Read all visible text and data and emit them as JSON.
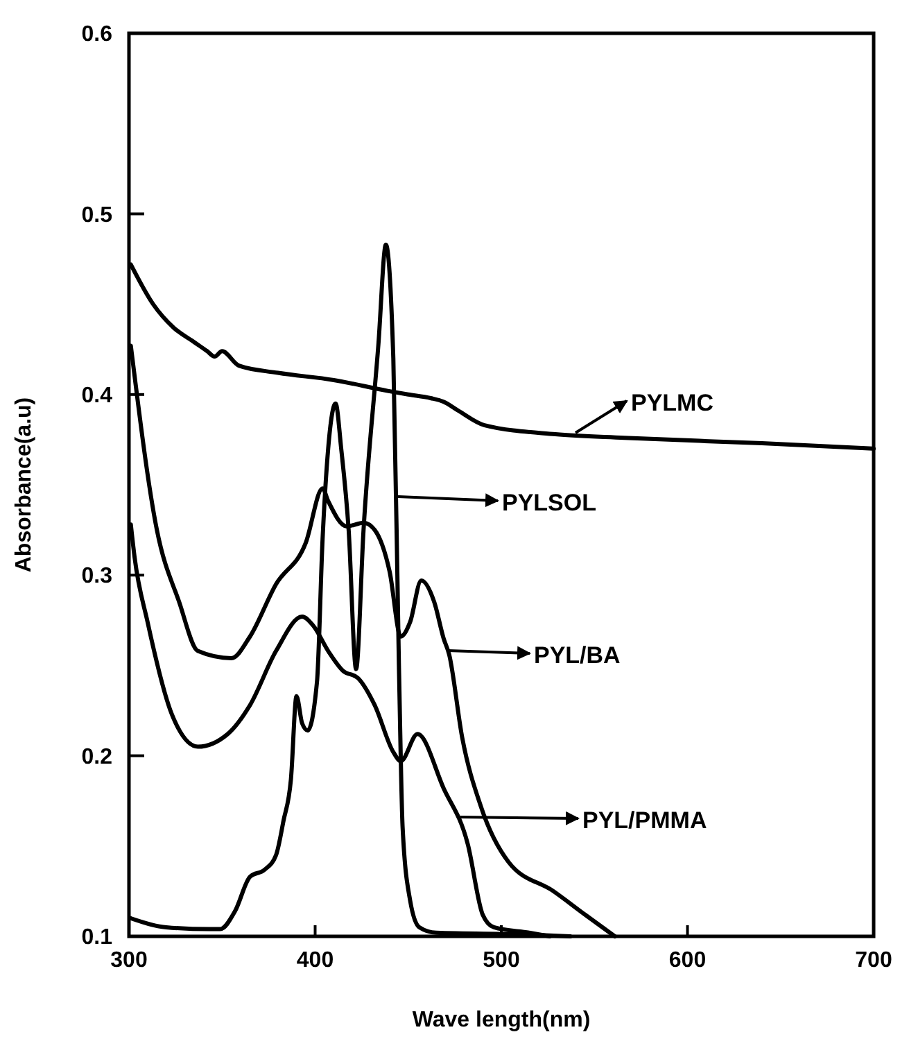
{
  "chart_data": {
    "type": "line",
    "xlabel": "Wave length(nm)",
    "ylabel": "Absorbance(a.u)",
    "xlim": [
      300,
      700
    ],
    "ylim": [
      0.1,
      0.6
    ],
    "xticks": [
      300,
      400,
      500,
      600,
      700
    ],
    "yticks": [
      0.1,
      0.2,
      0.3,
      0.4,
      0.5,
      0.6
    ],
    "grid": false,
    "legend": "right",
    "marker": "none",
    "line_style": "solid",
    "series": [
      {
        "name": "PYLMC",
        "color": "#000000",
        "x": [
          301,
          313,
          324,
          335,
          342,
          346,
          350,
          359,
          380,
          410,
          439,
          450,
          462,
          469,
          477,
          491,
          529,
          566,
          640,
          700
        ],
        "values": [
          0.472,
          0.45,
          0.437,
          0.429,
          0.424,
          0.421,
          0.424,
          0.416,
          0.412,
          0.408,
          0.402,
          0.4,
          0.398,
          0.396,
          0.391,
          0.383,
          0.378,
          0.376,
          0.373,
          0.37
        ]
      },
      {
        "name": "PYLSOL",
        "color": "#000000",
        "x": [
          301,
          320,
          343,
          349,
          357,
          365,
          373,
          379,
          383,
          387,
          390,
          393,
          396,
          401,
          404,
          407,
          411,
          414,
          418,
          422,
          426,
          434,
          438,
          442,
          445,
          447,
          451,
          456,
          465,
          515,
          537
        ],
        "values": [
          0.11,
          0.105,
          0.104,
          0.104,
          0.114,
          0.133,
          0.137,
          0.145,
          0.164,
          0.187,
          0.233,
          0.218,
          0.214,
          0.241,
          0.32,
          0.37,
          0.395,
          0.37,
          0.325,
          0.248,
          0.325,
          0.428,
          0.483,
          0.42,
          0.25,
          0.16,
          0.12,
          0.105,
          0.102,
          0.101,
          0.1
        ]
      },
      {
        "name": "PYL/BA",
        "color": "#000000",
        "x": [
          301,
          315,
          327,
          337,
          355,
          365,
          379,
          395,
          404,
          407,
          417,
          426,
          432,
          440,
          446,
          451,
          457,
          464,
          469,
          472,
          479,
          489,
          504,
          528,
          545,
          561
        ],
        "values": [
          0.427,
          0.325,
          0.285,
          0.258,
          0.254,
          0.266,
          0.295,
          0.318,
          0.348,
          0.341,
          0.327,
          0.329,
          0.325,
          0.302,
          0.266,
          0.274,
          0.297,
          0.285,
          0.265,
          0.256,
          0.21,
          0.172,
          0.141,
          0.125,
          0.112,
          0.1
        ]
      },
      {
        "name": "PYL/PMMA",
        "color": "#000000",
        "x": [
          301,
          303,
          310,
          323,
          337,
          353,
          365,
          379,
          393,
          399,
          407,
          415,
          423,
          432,
          442,
          446,
          455,
          469,
          482,
          490,
          496,
          515,
          526
        ],
        "values": [
          0.328,
          0.31,
          0.274,
          0.223,
          0.205,
          0.212,
          0.228,
          0.258,
          0.277,
          0.272,
          0.258,
          0.247,
          0.243,
          0.228,
          0.202,
          0.197,
          0.212,
          0.182,
          0.151,
          0.112,
          0.105,
          0.102,
          0.1
        ]
      }
    ]
  }
}
